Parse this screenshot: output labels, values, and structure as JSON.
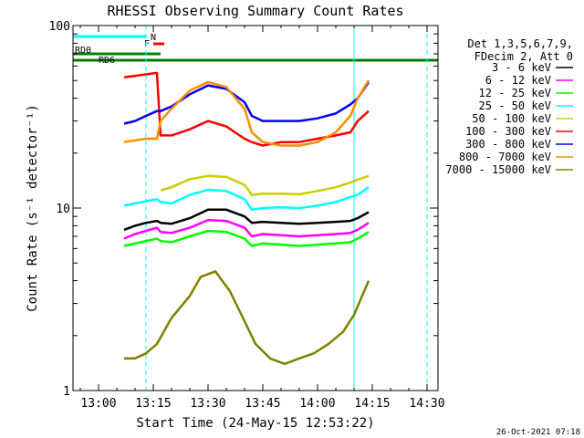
{
  "chart_data": {
    "type": "line",
    "title": "RHESSI Observing Summary Count Rates",
    "xlabel": "Start Time (24-May-15 12:53:22)",
    "ylabel": "Count Rate (s⁻¹ detector⁻¹)",
    "x_scale": "time",
    "y_scale": "log",
    "xlim": [
      "12:53",
      "14:33"
    ],
    "ylim": [
      1,
      100
    ],
    "x_ticks": [
      "13:00",
      "13:15",
      "13:30",
      "13:45",
      "14:00",
      "14:15",
      "14:30"
    ],
    "y_ticks": [
      {
        "value": 1,
        "label": "1"
      },
      {
        "value": 10,
        "label": "10"
      },
      {
        "value": 100,
        "label": "100"
      }
    ],
    "grid": false,
    "legend_position": "right",
    "legend_header": [
      "Det 1,3,5,6,7,9,",
      "FDecim 2, Att 0"
    ],
    "timestamp": "26-Oct-2021 07:18",
    "series": [
      {
        "name": "3 - 6 keV",
        "color": "#000000",
        "x": [
          "13:07",
          "13:10",
          "13:13",
          "13:16",
          "13:17",
          "13:20",
          "13:25",
          "13:30",
          "13:35",
          "13:40",
          "13:42",
          "13:45",
          "13:50",
          "13:55",
          "14:00",
          "14:05",
          "14:09",
          "14:11",
          "14:14"
        ],
        "y": [
          7.6,
          8.0,
          8.3,
          8.5,
          8.3,
          8.2,
          8.8,
          9.8,
          9.8,
          9.0,
          8.3,
          8.4,
          8.3,
          8.2,
          8.3,
          8.4,
          8.5,
          8.8,
          9.5
        ]
      },
      {
        "name": "6 - 12 keV",
        "color": "#ff00ff",
        "x": [
          "13:07",
          "13:10",
          "13:13",
          "13:16",
          "13:17",
          "13:20",
          "13:25",
          "13:30",
          "13:35",
          "13:40",
          "13:42",
          "13:45",
          "13:50",
          "13:55",
          "14:00",
          "14:05",
          "14:09",
          "14:11",
          "14:14"
        ],
        "y": [
          6.8,
          7.2,
          7.5,
          7.8,
          7.4,
          7.3,
          7.8,
          8.6,
          8.5,
          7.8,
          7.0,
          7.2,
          7.1,
          7.0,
          7.1,
          7.2,
          7.3,
          7.6,
          8.3
        ]
      },
      {
        "name": "12 - 25 keV",
        "color": "#00ff00",
        "x": [
          "13:07",
          "13:10",
          "13:13",
          "13:16",
          "13:17",
          "13:20",
          "13:25",
          "13:30",
          "13:35",
          "13:40",
          "13:42",
          "13:45",
          "13:50",
          "13:55",
          "14:00",
          "14:05",
          "14:09",
          "14:11",
          "14:14"
        ],
        "y": [
          6.2,
          6.4,
          6.6,
          6.8,
          6.6,
          6.5,
          7.0,
          7.5,
          7.4,
          6.8,
          6.2,
          6.4,
          6.3,
          6.2,
          6.3,
          6.4,
          6.5,
          6.8,
          7.4
        ]
      },
      {
        "name": "25 - 50 keV",
        "color": "#00ffff",
        "x": [
          "13:07",
          "13:10",
          "13:13",
          "13:16",
          "13:17",
          "13:20",
          "13:25",
          "13:30",
          "13:35",
          "13:40",
          "13:42",
          "13:45",
          "13:50",
          "13:55",
          "14:00",
          "14:05",
          "14:09",
          "14:11",
          "14:14"
        ],
        "y": [
          10.3,
          10.6,
          10.9,
          11.2,
          10.8,
          10.6,
          11.8,
          12.6,
          12.4,
          11.2,
          9.8,
          10.0,
          10.1,
          10.0,
          10.3,
          10.8,
          11.5,
          11.8,
          13.0
        ]
      },
      {
        "name": "50 - 100 keV",
        "color": "#cccc00",
        "x": [
          "13:17",
          "13:20",
          "13:25",
          "13:30",
          "13:35",
          "13:40",
          "13:42",
          "13:45",
          "13:50",
          "13:55",
          "14:00",
          "14:05",
          "14:09",
          "14:11",
          "14:14"
        ],
        "y": [
          12.5,
          13.0,
          14.4,
          15.0,
          14.8,
          13.4,
          11.8,
          12.0,
          12.0,
          11.9,
          12.4,
          13.0,
          13.8,
          14.3,
          15.0
        ]
      },
      {
        "name": "100 - 300 keV",
        "color": "#ff0000",
        "x": [
          "13:07",
          "13:10",
          "13:13",
          "13:16",
          "13:17",
          "13:20",
          "13:25",
          "13:30",
          "13:35",
          "13:40",
          "13:42",
          "13:45",
          "13:50",
          "13:55",
          "14:00",
          "14:05",
          "14:09",
          "14:11",
          "14:14"
        ],
        "y": [
          52,
          53,
          54,
          55,
          25,
          25,
          27,
          30,
          28,
          24,
          23,
          22,
          23,
          23,
          24,
          25,
          26,
          30,
          34
        ]
      },
      {
        "name": "300 - 800 keV",
        "color": "#0000ff",
        "x": [
          "13:07",
          "13:10",
          "13:13",
          "13:16",
          "13:17",
          "13:20",
          "13:25",
          "13:30",
          "13:35",
          "13:40",
          "13:42",
          "13:45",
          "13:50",
          "13:55",
          "14:00",
          "14:05",
          "14:09",
          "14:11",
          "14:14"
        ],
        "y": [
          29,
          30,
          32,
          34,
          34,
          36,
          42,
          47,
          45,
          38,
          32,
          30,
          30,
          30,
          31,
          33,
          37,
          40,
          49
        ]
      },
      {
        "name": "800 - 7000 keV",
        "color": "#ff8c00",
        "x": [
          "13:07",
          "13:10",
          "13:13",
          "13:16",
          "13:17",
          "13:20",
          "13:25",
          "13:30",
          "13:35",
          "13:40",
          "13:42",
          "13:45",
          "13:50",
          "13:55",
          "14:00",
          "14:05",
          "14:09",
          "14:11",
          "14:14"
        ],
        "y": [
          23,
          23.5,
          24,
          24,
          30,
          35,
          44,
          49,
          46,
          35,
          26,
          23,
          22,
          22,
          23,
          26,
          32,
          40,
          50
        ]
      },
      {
        "name": "7000 - 15000 keV",
        "color": "#808000",
        "x": [
          "13:07",
          "13:10",
          "13:13",
          "13:16",
          "13:20",
          "13:25",
          "13:28",
          "13:32",
          "13:36",
          "13:40",
          "13:43",
          "13:47",
          "13:51",
          "13:55",
          "13:59",
          "14:03",
          "14:07",
          "14:10",
          "14:14"
        ],
        "y": [
          1.5,
          1.5,
          1.6,
          1.8,
          2.5,
          3.3,
          4.2,
          4.5,
          3.5,
          2.4,
          1.8,
          1.5,
          1.4,
          1.5,
          1.6,
          1.8,
          2.1,
          2.6,
          4.0
        ]
      }
    ],
    "annotations": {
      "flag_N": {
        "label": "N",
        "color": "#00ffff",
        "segments": [
          [
            "12:53",
            "13:13"
          ]
        ]
      },
      "flag_F": {
        "label": "F",
        "color": "#ff0000",
        "segments": [
          [
            "13:15",
            "13:18"
          ]
        ]
      },
      "flag_RD0": {
        "label": "RD0",
        "color": "#008000",
        "segments": [
          [
            "12:53",
            "13:17"
          ]
        ]
      },
      "flag_RD6": {
        "label": "RD6",
        "color": "#008000",
        "segments": [
          [
            "12:53",
            "14:33"
          ]
        ]
      },
      "saa_markers": {
        "color": "#00ffff",
        "x": [
          "12:53",
          "13:13",
          "14:10",
          "14:30"
        ]
      }
    }
  }
}
